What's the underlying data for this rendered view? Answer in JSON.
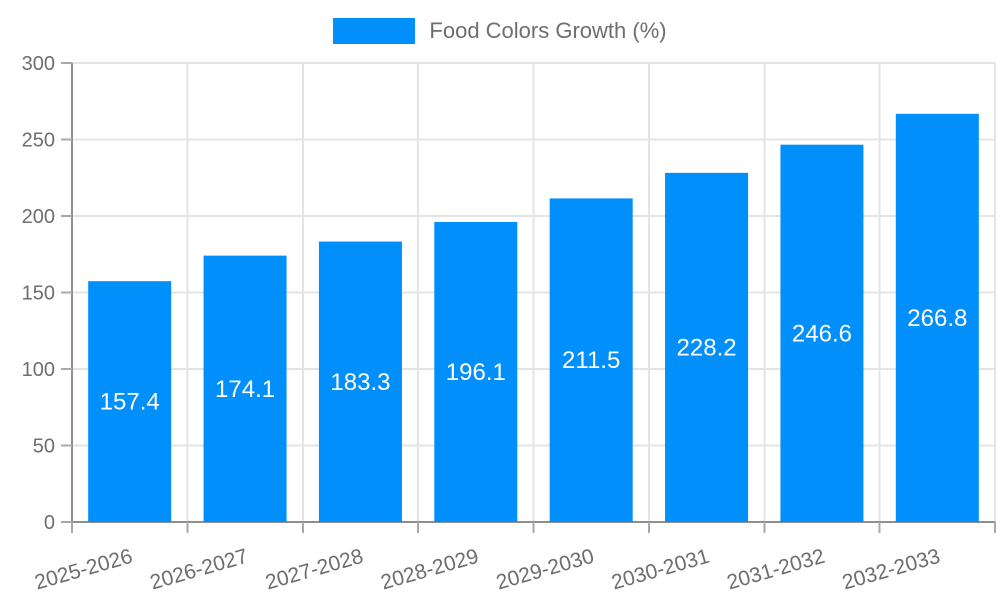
{
  "legend": {
    "label": "Food Colors Growth (%)"
  },
  "colors": {
    "bar": "#008ffb",
    "grid": "#e4e4e4",
    "axis": "#8f8f8f",
    "tick": "#a8a8a8",
    "axis_text": "#6e6e6e",
    "legend_text": "#6e6e6e",
    "value_text": "#ffffff",
    "background": "#ffffff"
  },
  "chart_data": {
    "type": "bar",
    "title": "",
    "categories": [
      "2025-2026",
      "2026-2027",
      "2027-2028",
      "2028-2029",
      "2029-2030",
      "2030-2031",
      "2031-2032",
      "2032-2033"
    ],
    "series": [
      {
        "name": "Food Colors Growth (%)",
        "values": [
          157.4,
          174.1,
          183.3,
          196.1,
          211.5,
          228.2,
          246.6,
          266.8
        ]
      }
    ],
    "xlabel": "",
    "ylabel": "",
    "ylim": [
      0,
      300
    ],
    "yticks": [
      0,
      50,
      100,
      150,
      200,
      250,
      300
    ],
    "grid": true,
    "legend_position": "top-center",
    "x_label_rotation_deg": -16,
    "value_label_position": "inside-center"
  }
}
